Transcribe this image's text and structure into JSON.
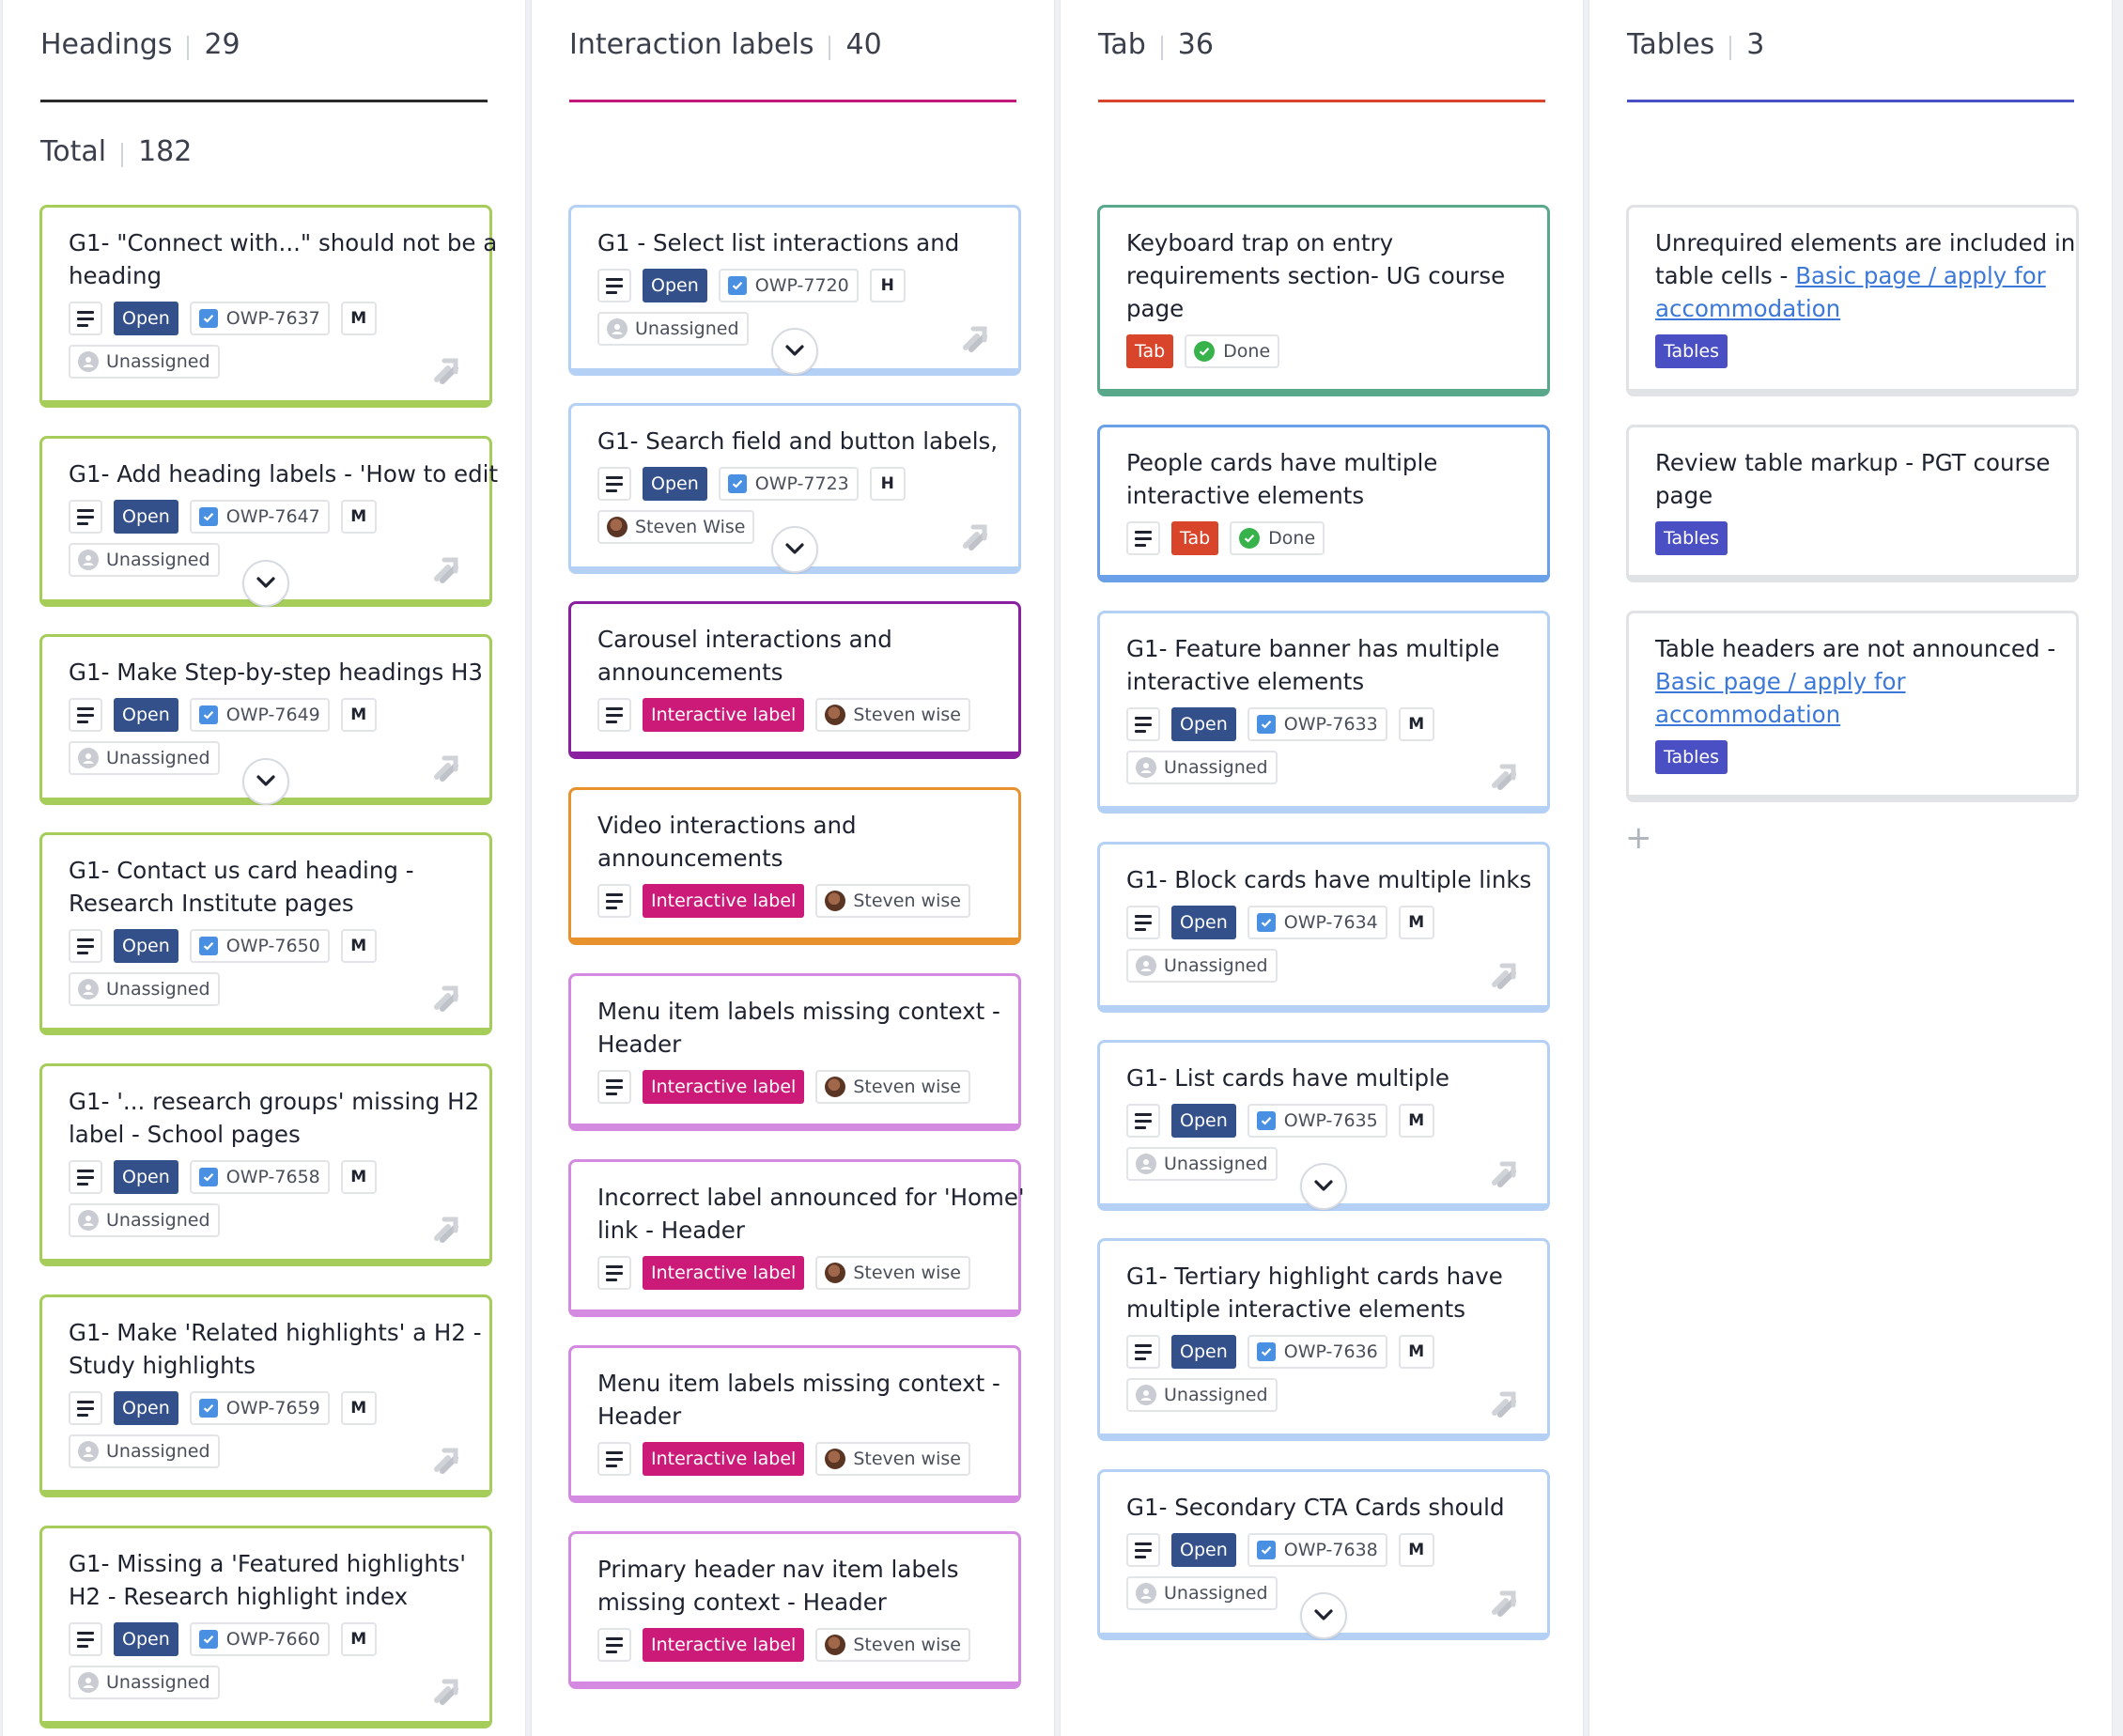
{
  "columns": [
    {
      "title": "Headings",
      "count": "29",
      "accent": "#2a2a2a",
      "total_label": "Total",
      "total_value": "182",
      "cards": [
        {
          "title": [
            "G1- \"Connect with...\" should not be a",
            "heading"
          ],
          "status": "Open",
          "issue": "OWP-7637",
          "size": "M",
          "assignee": "Unassigned"
        },
        {
          "title": [
            "G1- Add heading labels - 'How to edit"
          ],
          "status": "Open",
          "issue": "OWP-7647",
          "size": "M",
          "assignee": "Unassigned"
        },
        {
          "title": [
            "G1- Make Step-by-step headings H3"
          ],
          "status": "Open",
          "issue": "OWP-7649",
          "size": "M",
          "assignee": "Unassigned"
        },
        {
          "title": [
            "G1- Contact us card heading -",
            "Research Institute pages"
          ],
          "status": "Open",
          "issue": "OWP-7650",
          "size": "M",
          "assignee": "Unassigned"
        },
        {
          "title": [
            "G1- '... research groups' missing H2",
            "label - School pages"
          ],
          "status": "Open",
          "issue": "OWP-7658",
          "size": "M",
          "assignee": "Unassigned"
        },
        {
          "title": [
            "G1- Make 'Related highlights' a H2 -",
            "Study highlights"
          ],
          "status": "Open",
          "issue": "OWP-7659",
          "size": "M",
          "assignee": "Unassigned"
        },
        {
          "title": [
            "G1- Missing a 'Featured highlights'",
            "H2 - Research highlight index"
          ],
          "status": "Open",
          "issue": "OWP-7660",
          "size": "M",
          "assignee": "Unassigned"
        }
      ]
    },
    {
      "title": "Interaction labels",
      "count": "40",
      "accent": "#c2187a",
      "cards": [
        {
          "title": [
            "G1 - Select list interactions and"
          ],
          "status": "Open",
          "issue": "OWP-7720",
          "size": "H",
          "assignee": "Unassigned"
        },
        {
          "title": [
            "G1- Search field and button labels,"
          ],
          "status": "Open",
          "issue": "OWP-7723",
          "size": "H",
          "assignee": "Steven Wise"
        },
        {
          "title": [
            "Carousel interactions and",
            "announcements"
          ],
          "label": "Interactive label",
          "assignee": "Steven wise"
        },
        {
          "title": [
            "Video interactions and",
            "announcements"
          ],
          "label": "Interactive label",
          "assignee": "Steven wise"
        },
        {
          "title": [
            "Menu item labels missing context -",
            "Header"
          ],
          "label": "Interactive label",
          "assignee": "Steven wise"
        },
        {
          "title": [
            "Incorrect label announced for 'Home'",
            "link - Header"
          ],
          "label": "Interactive label",
          "assignee": "Steven wise"
        },
        {
          "title": [
            "Menu item labels missing context -",
            "Header"
          ],
          "label": "Interactive label",
          "assignee": "Steven wise"
        },
        {
          "title": [
            "Primary header nav item labels",
            "missing context - Header"
          ],
          "label": "Interactive label",
          "assignee": "Steven wise"
        }
      ]
    },
    {
      "title": "Tab",
      "count": "36",
      "accent": "#d9452b",
      "cards": [
        {
          "title": [
            "Keyboard trap on entry",
            "requirements section- UG course",
            "page"
          ],
          "label": "Tab",
          "done": "Done"
        },
        {
          "title": [
            "People cards have multiple",
            "interactive elements"
          ],
          "label": "Tab",
          "done": "Done"
        },
        {
          "title": [
            "G1- Feature banner has multiple",
            "interactive elements"
          ],
          "status": "Open",
          "issue": "OWP-7633",
          "size": "M",
          "assignee": "Unassigned"
        },
        {
          "title": [
            "G1- Block cards have multiple links"
          ],
          "status": "Open",
          "issue": "OWP-7634",
          "size": "M",
          "assignee": "Unassigned"
        },
        {
          "title": [
            "G1- List cards have multiple"
          ],
          "status": "Open",
          "issue": "OWP-7635",
          "size": "M",
          "assignee": "Unassigned"
        },
        {
          "title": [
            "G1- Tertiary highlight cards have",
            "multiple interactive elements"
          ],
          "status": "Open",
          "issue": "OWP-7636",
          "size": "M",
          "assignee": "Unassigned"
        },
        {
          "title": [
            "G1- Secondary CTA Cards should"
          ],
          "status": "Open",
          "issue": "OWP-7638",
          "size": "M",
          "assignee": "Unassigned"
        }
      ]
    },
    {
      "title": "Tables",
      "count": "3",
      "accent": "#4a4fc4",
      "add_label": "+",
      "cards": [
        {
          "title_text": "Unrequired elements are included in",
          "title_text2": "table cells - ",
          "link1": "Basic page / apply for",
          "link2": "accommodation",
          "label": "Tables"
        },
        {
          "title": [
            "Review table markup - PGT course",
            "page"
          ],
          "label": "Tables"
        },
        {
          "title_text": "Table headers are not announced -",
          "link1": "Basic page / apply for",
          "link2": "accommodation",
          "label": "Tables"
        }
      ]
    }
  ],
  "colors": {
    "green_border": "#a6cc5a",
    "blue_border": "#b5d0f5",
    "teal_border": "#5aa88c",
    "blue_strong_border": "#6aa0e8",
    "purple_border": "#8a1fa0",
    "orange_border": "#e8922e",
    "pink_border": "#d48ae0",
    "grey_border": "#e0e2e6",
    "open_status": "#33508a",
    "interactive_label": "#cc1a78",
    "tab_label": "#d9452b",
    "tables_label": "#4a4fc4",
    "link": "#3c78d8"
  }
}
